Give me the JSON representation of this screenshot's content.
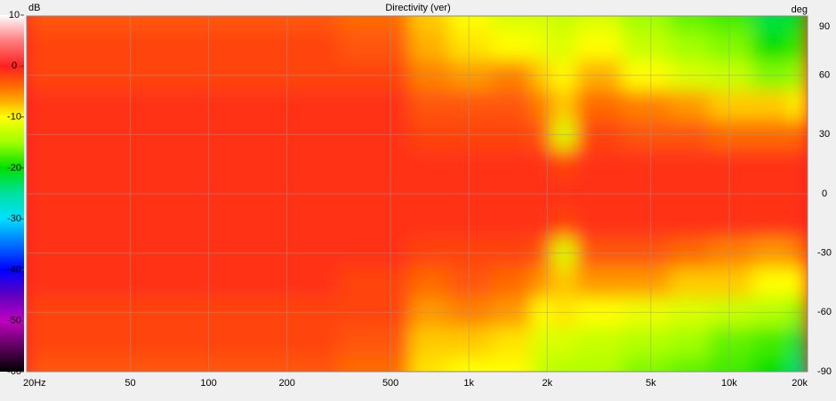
{
  "chart_data": {
    "type": "heatmap",
    "title": "Directivity (ver)",
    "z_label": "dB",
    "y_label": "deg",
    "x_scale": "log",
    "x": [
      20,
      50,
      100,
      200,
      500,
      700,
      1000,
      1500,
      2000,
      2200,
      3000,
      5000,
      7000,
      10000,
      15000,
      20000
    ],
    "y": [
      90,
      75,
      60,
      45,
      30,
      15,
      0,
      -15,
      -30,
      -45,
      -60,
      -75,
      -90
    ],
    "values": [
      [
        -3,
        -3,
        -3,
        -3,
        -4,
        -8,
        -10,
        -12,
        -12,
        -13,
        -12,
        -15,
        -17,
        -18,
        -22,
        -20
      ],
      [
        -2,
        -2,
        -2,
        -2,
        -3,
        -7,
        -9,
        -10,
        -11,
        -12,
        -10,
        -13,
        -15,
        -16,
        -20,
        -18
      ],
      [
        -2,
        -2,
        -2,
        -2,
        -2,
        -5,
        -6,
        -5,
        -8,
        -10,
        -7,
        -10,
        -12,
        -13,
        -16,
        -15
      ],
      [
        -1,
        -1,
        -1,
        -1,
        -1,
        -3,
        -3,
        -3,
        -5,
        -8,
        -4,
        -5,
        -6,
        -8,
        -8,
        -10
      ],
      [
        -1,
        -1,
        -1,
        -1,
        -1,
        -2,
        -2,
        -2,
        -3,
        -12,
        -2,
        -3,
        -3,
        -4,
        -4,
        -4
      ],
      [
        -1,
        -1,
        -1,
        -1,
        -1,
        -1,
        -1,
        -1,
        -1,
        -2,
        -1,
        -1,
        -1,
        -1,
        -1,
        -1
      ],
      [
        -1,
        -1,
        -1,
        -1,
        -1,
        -1,
        -1,
        -1,
        -1,
        -1,
        -1,
        -1,
        -1,
        -1,
        -1,
        -1
      ],
      [
        -1,
        -1,
        -1,
        -1,
        -1,
        -1,
        -1,
        -1,
        -1,
        -2,
        -1,
        -1,
        -1,
        -1,
        -1,
        -1
      ],
      [
        -1,
        -1,
        -1,
        -1,
        -1,
        -2,
        -2,
        -2,
        -3,
        -12,
        -3,
        -3,
        -4,
        -5,
        -6,
        -5
      ],
      [
        -1,
        -1,
        -1,
        -1,
        -2,
        -4,
        -3,
        -4,
        -6,
        -8,
        -6,
        -6,
        -8,
        -8,
        -10,
        -10
      ],
      [
        -2,
        -2,
        -2,
        -2,
        -2,
        -6,
        -5,
        -6,
        -10,
        -9,
        -10,
        -11,
        -12,
        -13,
        -14,
        -16
      ],
      [
        -2,
        -2,
        -2,
        -2,
        -3,
        -8,
        -8,
        -9,
        -12,
        -12,
        -13,
        -14,
        -15,
        -17,
        -18,
        -22
      ],
      [
        -3,
        -3,
        -3,
        -3,
        -4,
        -9,
        -10,
        -10,
        -13,
        -14,
        -14,
        -16,
        -17,
        -18,
        -20,
        -24
      ]
    ],
    "xlim": [
      20,
      20000
    ],
    "xticks": [
      {
        "value": 20,
        "label": "20Hz"
      },
      50,
      100,
      200,
      500,
      {
        "value": 1000,
        "label": "1k"
      },
      {
        "value": 2000,
        "label": "2k"
      },
      {
        "value": 5000,
        "label": "5k"
      },
      {
        "value": 10000,
        "label": "10k"
      },
      {
        "value": 20000,
        "label": "20k"
      }
    ],
    "ylim": [
      -90,
      90
    ],
    "yticks": [
      90,
      60,
      30,
      0,
      -30,
      -60,
      -90
    ],
    "zlim": [
      -60,
      10
    ],
    "zticks": [
      10,
      0,
      -10,
      -20,
      -30,
      -40,
      -50,
      -60
    ],
    "grid": true
  }
}
